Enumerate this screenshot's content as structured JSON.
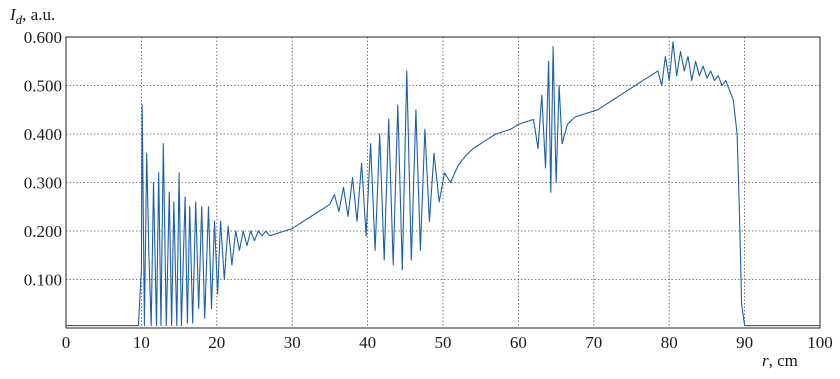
{
  "chart_data": {
    "type": "line",
    "ylabel_symbol": "I",
    "ylabel_sub": "d",
    "ylabel_unit": ", a.u.",
    "xlabel_symbol": "r",
    "xlabel_unit": ", cm",
    "xlim": [
      0,
      100
    ],
    "ylim": [
      0,
      0.6
    ],
    "x_ticks": [
      "0",
      "10",
      "20",
      "30",
      "40",
      "50",
      "60",
      "70",
      "80",
      "90",
      "100"
    ],
    "y_ticks": [
      "0.600",
      "0.500",
      "0.400",
      "0.300",
      "0.200",
      "0.100"
    ],
    "grid": true,
    "color": "#1f5fa8",
    "series": [
      {
        "x": [
          0,
          9.6,
          10.0,
          10.1,
          10.4,
          10.7,
          11.0,
          11.3,
          11.6,
          12.0,
          12.3,
          12.6,
          12.9,
          13.3,
          13.7,
          14.0,
          14.3,
          14.7,
          15.0,
          15.3,
          15.8,
          16.1,
          16.4,
          16.8,
          17.2,
          17.6,
          18.0,
          18.4,
          18.9,
          19.3,
          19.7,
          20.1,
          20.5,
          21.0,
          21.5,
          22.0,
          22.5,
          23.0,
          23.5,
          24.0,
          24.5,
          25.0,
          25.5,
          26.0,
          26.5,
          27.0,
          28.0,
          29.0,
          30.0,
          31.0,
          32.0,
          33.0,
          34.0,
          35.0,
          35.6,
          36.2,
          36.8,
          37.4,
          38.0,
          38.6,
          39.2,
          39.8,
          40.4,
          41.0,
          41.6,
          42.2,
          42.8,
          43.4,
          44.0,
          44.6,
          45.2,
          45.8,
          46.4,
          47.0,
          47.6,
          48.2,
          48.8,
          49.5,
          50.2,
          51.0,
          52.0,
          53.0,
          54.0,
          55.0,
          56.0,
          57.0,
          58.0,
          59.0,
          60.0,
          61.0,
          62.0,
          62.6,
          63.1,
          63.6,
          64.0,
          64.3,
          64.6,
          65.0,
          65.4,
          65.8,
          66.5,
          67.5,
          68.5,
          69.5,
          70.5,
          71.5,
          72.5,
          73.5,
          74.5,
          75.5,
          76.5,
          77.5,
          78.5,
          79.0,
          79.5,
          80.0,
          80.5,
          81.0,
          81.5,
          82.0,
          82.5,
          83.0,
          83.5,
          84.0,
          84.5,
          85.0,
          85.5,
          86.0,
          86.5,
          87.0,
          87.5,
          88.0,
          88.5,
          89.0,
          89.3,
          89.6,
          90.0,
          92.0,
          95.0,
          100.0
        ],
        "y": [
          0.005,
          0.005,
          0.12,
          0.46,
          0.005,
          0.36,
          0.15,
          0.005,
          0.3,
          0.005,
          0.32,
          0.005,
          0.38,
          0.005,
          0.28,
          0.005,
          0.26,
          0.005,
          0.32,
          0.005,
          0.27,
          0.01,
          0.25,
          0.01,
          0.26,
          0.04,
          0.25,
          0.02,
          0.25,
          0.04,
          0.22,
          0.07,
          0.22,
          0.1,
          0.21,
          0.13,
          0.2,
          0.16,
          0.2,
          0.17,
          0.2,
          0.18,
          0.2,
          0.19,
          0.2,
          0.19,
          0.195,
          0.2,
          0.205,
          0.215,
          0.225,
          0.235,
          0.245,
          0.255,
          0.275,
          0.24,
          0.29,
          0.23,
          0.31,
          0.22,
          0.34,
          0.19,
          0.38,
          0.16,
          0.4,
          0.14,
          0.43,
          0.13,
          0.46,
          0.12,
          0.53,
          0.14,
          0.45,
          0.16,
          0.41,
          0.22,
          0.36,
          0.26,
          0.32,
          0.3,
          0.335,
          0.355,
          0.37,
          0.38,
          0.39,
          0.4,
          0.405,
          0.41,
          0.42,
          0.425,
          0.43,
          0.37,
          0.48,
          0.33,
          0.55,
          0.28,
          0.58,
          0.3,
          0.5,
          0.38,
          0.42,
          0.435,
          0.44,
          0.445,
          0.45,
          0.46,
          0.47,
          0.48,
          0.49,
          0.5,
          0.51,
          0.52,
          0.53,
          0.5,
          0.56,
          0.51,
          0.59,
          0.52,
          0.57,
          0.53,
          0.56,
          0.51,
          0.55,
          0.52,
          0.54,
          0.515,
          0.53,
          0.51,
          0.52,
          0.5,
          0.51,
          0.49,
          0.47,
          0.4,
          0.25,
          0.05,
          0.005,
          0.005,
          0.005,
          0.005
        ]
      }
    ]
  }
}
